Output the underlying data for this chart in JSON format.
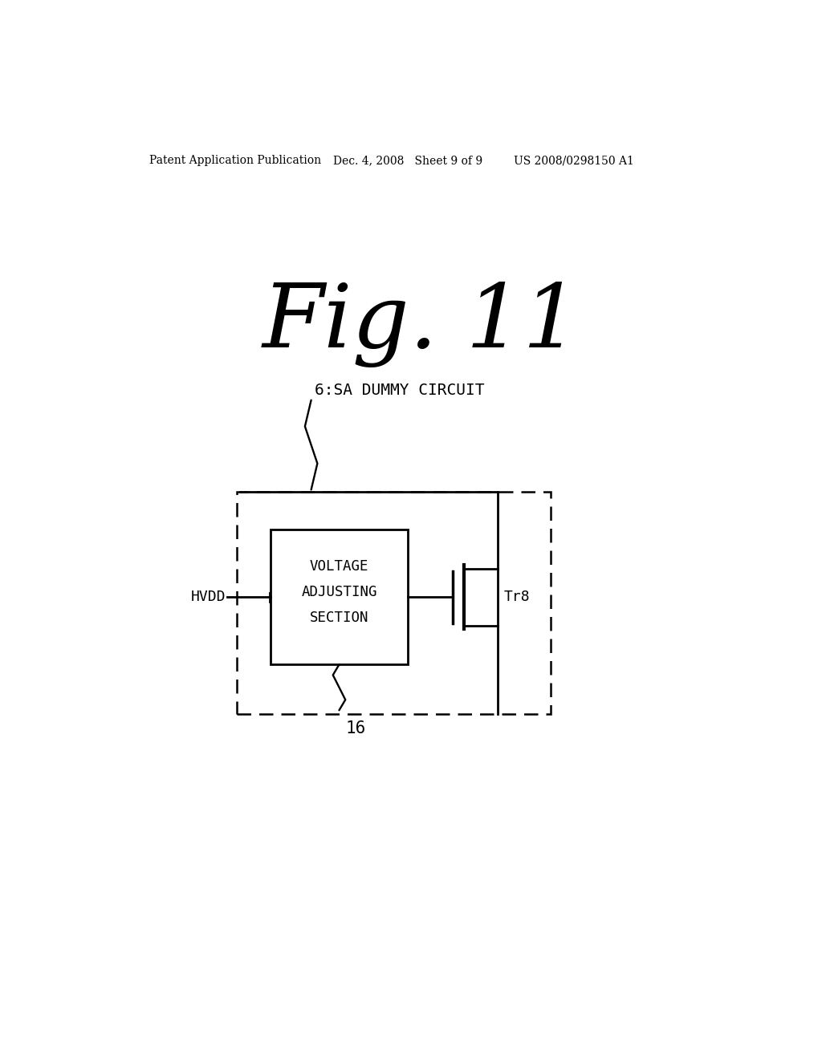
{
  "background_color": "#ffffff",
  "header_left": "Patent Application Publication",
  "header_mid": "Dec. 4, 2008   Sheet 9 of 9",
  "header_right": "US 2008/0298150 A1",
  "fig_label": "Fig. 11",
  "label_6": "6:SA DUMMY CIRCUIT",
  "label_16": "16",
  "label_hvdd": "HVDD",
  "label_tr8": "Tr8",
  "box_text": "VOLTAGE\nADJUSTING\nSECTION",
  "line_color": "#000000",
  "text_color": "#000000"
}
